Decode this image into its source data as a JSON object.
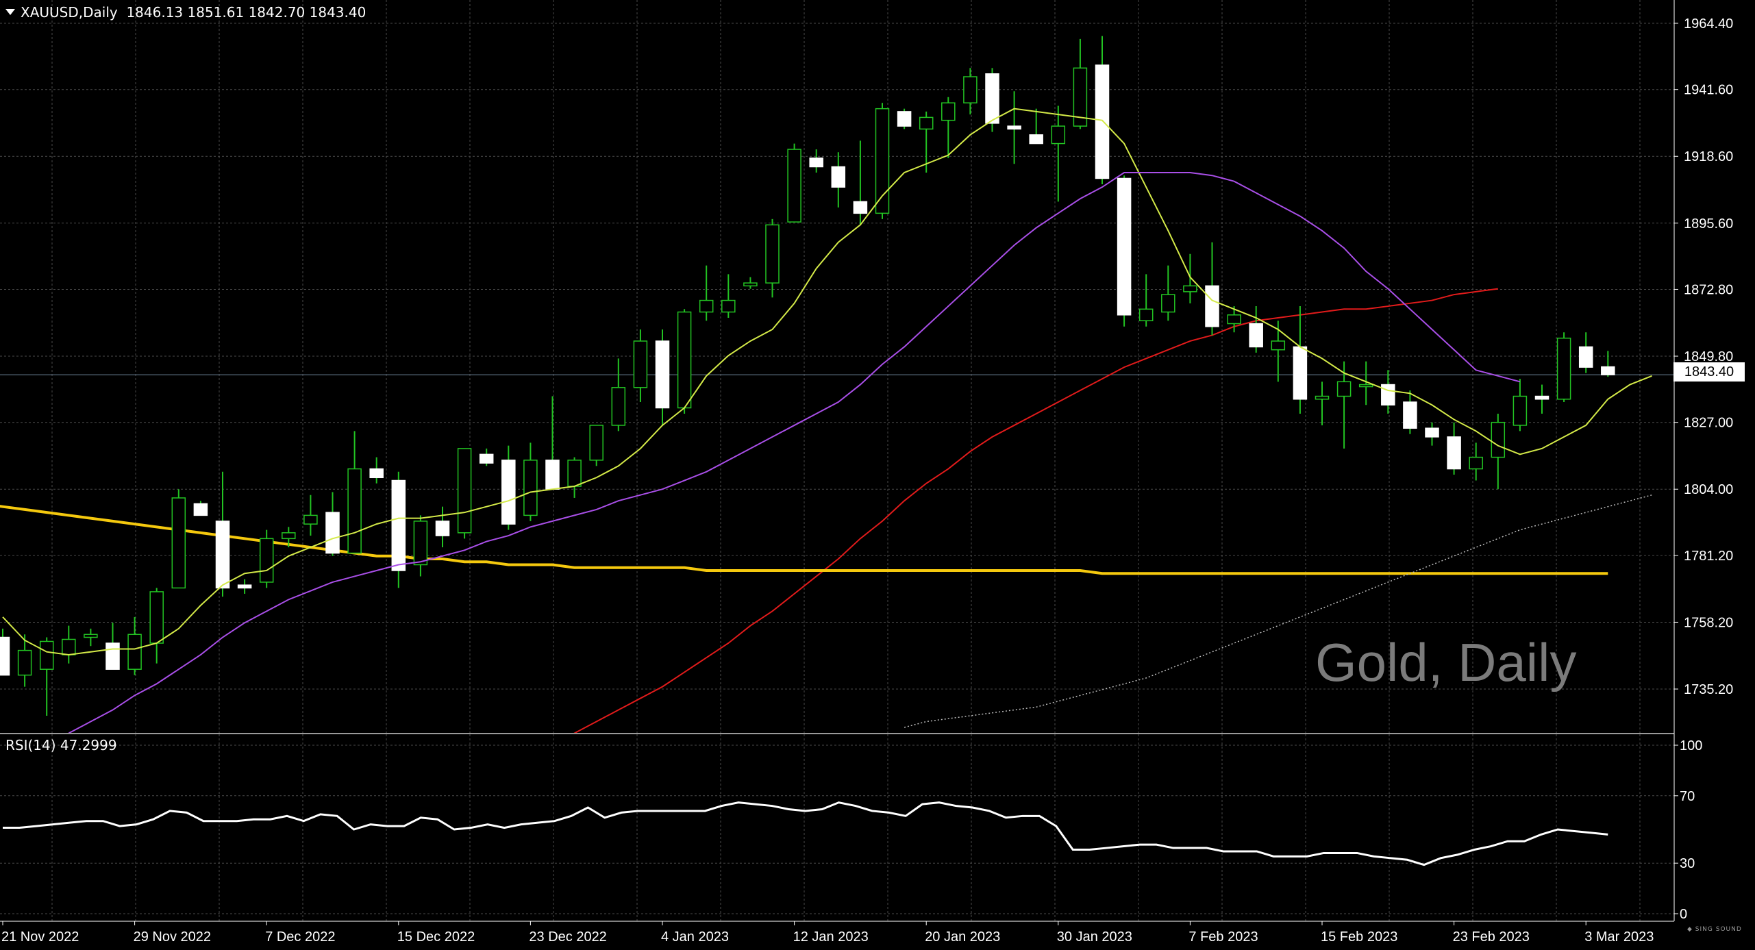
{
  "header": {
    "symbol": "XAUUSD,Daily",
    "ohlc": "1846.13 1851.61 1842.70 1843.40"
  },
  "watermark": "Gold, Daily",
  "current_price_label": "1843.40",
  "rsi_header": "RSI(14) 47.2999",
  "logo_text": "SING SOUND",
  "colors": {
    "background": "#000000",
    "grid": "#4a4a4a",
    "candle_up_body": "#000000",
    "candle_up_border": "#22c322",
    "candle_down_body": "#ffffff",
    "wick": "#22c322",
    "ma_fast": "#d4ea48",
    "ma_medium": "#a94fe8",
    "ma_slow": "#e21b1b",
    "ma_long_yellow": "#f5c90e",
    "ma_long_dotted": "#bbbbbb",
    "rsi_line": "#ffffff"
  },
  "chart_data": [
    {
      "type": "candlestick",
      "title": "XAUUSD,Daily",
      "y_ticks": [
        "1964.40",
        "1941.60",
        "1918.60",
        "1895.60",
        "1872.80",
        "1849.80",
        "1827.00",
        "1804.00",
        "1781.20",
        "1758.20",
        "1735.20"
      ],
      "ylim": [
        1722,
        1972
      ],
      "x_labels": [
        "21 Nov 2022",
        "29 Nov 2022",
        "7 Dec 2022",
        "15 Dec 2022",
        "23 Dec 2022",
        "4 Jan 2023",
        "12 Jan 2023",
        "20 Jan 2023",
        "30 Jan 2023",
        "7 Feb 2023",
        "15 Feb 2023",
        "23 Feb 2023",
        "3 Mar 2023"
      ],
      "x_label_bar_index": [
        0,
        6,
        12,
        18,
        24,
        30,
        36,
        42,
        48,
        54,
        60,
        66,
        72
      ],
      "last_price": 1843.4,
      "candles": [
        {
          "o": 1753.0,
          "h": 1756.0,
          "l": 1740.0,
          "c": 1740.0
        },
        {
          "o": 1740.0,
          "h": 1754.0,
          "l": 1736.0,
          "c": 1748.5
        },
        {
          "o": 1742.0,
          "h": 1753.0,
          "l": 1726.0,
          "c": 1751.6
        },
        {
          "o": 1747.0,
          "h": 1757.0,
          "l": 1744.0,
          "c": 1752.3
        },
        {
          "o": 1753.0,
          "h": 1756.0,
          "l": 1750.0,
          "c": 1754.0
        },
        {
          "o": 1751.0,
          "h": 1758.0,
          "l": 1743.0,
          "c": 1742.0
        },
        {
          "o": 1742.0,
          "h": 1760.0,
          "l": 1740.0,
          "c": 1754.0
        },
        {
          "o": 1751.0,
          "h": 1770.0,
          "l": 1744.0,
          "c": 1768.7
        },
        {
          "o": 1770.0,
          "h": 1804.0,
          "l": 1770.0,
          "c": 1801.0
        },
        {
          "o": 1799.0,
          "h": 1800.0,
          "l": 1795.0,
          "c": 1795.0
        },
        {
          "o": 1793.0,
          "h": 1810.0,
          "l": 1767.0,
          "c": 1770.0
        },
        {
          "o": 1771.0,
          "h": 1773.0,
          "l": 1768.0,
          "c": 1770.0
        },
        {
          "o": 1772.0,
          "h": 1790.0,
          "l": 1770.0,
          "c": 1787.0
        },
        {
          "o": 1787.0,
          "h": 1791.0,
          "l": 1784.0,
          "c": 1789.0
        },
        {
          "o": 1792.0,
          "h": 1802.0,
          "l": 1788.0,
          "c": 1795.0
        },
        {
          "o": 1796.0,
          "h": 1803.0,
          "l": 1781.0,
          "c": 1782.0
        },
        {
          "o": 1782.0,
          "h": 1824.0,
          "l": 1782.0,
          "c": 1811.0
        },
        {
          "o": 1811.0,
          "h": 1815.0,
          "l": 1806.0,
          "c": 1808.0
        },
        {
          "o": 1807.0,
          "h": 1810.0,
          "l": 1770.0,
          "c": 1776.0
        },
        {
          "o": 1778.0,
          "h": 1795.0,
          "l": 1774.0,
          "c": 1793.0
        },
        {
          "o": 1793.0,
          "h": 1798.0,
          "l": 1784.0,
          "c": 1788.0
        },
        {
          "o": 1789.0,
          "h": 1817.0,
          "l": 1787.0,
          "c": 1818.0
        },
        {
          "o": 1816.0,
          "h": 1818.0,
          "l": 1812.0,
          "c": 1813.0
        },
        {
          "o": 1814.0,
          "h": 1819.0,
          "l": 1790.0,
          "c": 1792.0
        },
        {
          "o": 1795.0,
          "h": 1820.0,
          "l": 1793.0,
          "c": 1814.0
        },
        {
          "o": 1814.0,
          "h": 1836.0,
          "l": 1804.0,
          "c": 1804.0
        },
        {
          "o": 1805.0,
          "h": 1815.0,
          "l": 1801.0,
          "c": 1814.0
        },
        {
          "o": 1814.0,
          "h": 1826.0,
          "l": 1812.0,
          "c": 1826.0
        },
        {
          "o": 1826.0,
          "h": 1849.0,
          "l": 1824.0,
          "c": 1839.0
        },
        {
          "o": 1839.0,
          "h": 1859.0,
          "l": 1834.0,
          "c": 1855.0
        },
        {
          "o": 1855.0,
          "h": 1859.0,
          "l": 1826.0,
          "c": 1832.0
        },
        {
          "o": 1832.0,
          "h": 1866.0,
          "l": 1830.0,
          "c": 1865.0
        },
        {
          "o": 1865.0,
          "h": 1881.0,
          "l": 1862.0,
          "c": 1869.0
        },
        {
          "o": 1865.0,
          "h": 1878.0,
          "l": 1863.0,
          "c": 1869.0
        },
        {
          "o": 1874.0,
          "h": 1877.0,
          "l": 1873.0,
          "c": 1875.0
        },
        {
          "o": 1875.0,
          "h": 1897.0,
          "l": 1870.0,
          "c": 1895.0
        },
        {
          "o": 1896.0,
          "h": 1923.0,
          "l": 1896.0,
          "c": 1921.0
        },
        {
          "o": 1918.0,
          "h": 1921.0,
          "l": 1913.0,
          "c": 1915.0
        },
        {
          "o": 1915.0,
          "h": 1920.0,
          "l": 1901.0,
          "c": 1908.0
        },
        {
          "o": 1903.0,
          "h": 1924.0,
          "l": 1895.0,
          "c": 1899.0
        },
        {
          "o": 1899.0,
          "h": 1937.0,
          "l": 1897.0,
          "c": 1935.0
        },
        {
          "o": 1934.0,
          "h": 1935.0,
          "l": 1928.0,
          "c": 1929.0
        },
        {
          "o": 1928.0,
          "h": 1934.0,
          "l": 1913.0,
          "c": 1932.0
        },
        {
          "o": 1931.0,
          "h": 1939.0,
          "l": 1918.0,
          "c": 1937.0
        },
        {
          "o": 1937.0,
          "h": 1949.0,
          "l": 1933.0,
          "c": 1946.0
        },
        {
          "o": 1947.0,
          "h": 1949.0,
          "l": 1927.0,
          "c": 1930.0
        },
        {
          "o": 1929.0,
          "h": 1941.0,
          "l": 1916.0,
          "c": 1928.0
        },
        {
          "o": 1926.0,
          "h": 1935.0,
          "l": 1923.0,
          "c": 1923.0
        },
        {
          "o": 1923.0,
          "h": 1936.0,
          "l": 1903.0,
          "c": 1929.0
        },
        {
          "o": 1929.0,
          "h": 1959.0,
          "l": 1928.0,
          "c": 1949.0
        },
        {
          "o": 1950.0,
          "h": 1960.0,
          "l": 1909.0,
          "c": 1911.0
        },
        {
          "o": 1911.0,
          "h": 1912.0,
          "l": 1860.0,
          "c": 1864.0
        },
        {
          "o": 1862.0,
          "h": 1878.0,
          "l": 1860.0,
          "c": 1866.0
        },
        {
          "o": 1865.0,
          "h": 1881.0,
          "l": 1862.0,
          "c": 1871.0
        },
        {
          "o": 1872.0,
          "h": 1885.0,
          "l": 1868.0,
          "c": 1874.0
        },
        {
          "o": 1874.0,
          "h": 1889.0,
          "l": 1857.0,
          "c": 1860.0
        },
        {
          "o": 1861.0,
          "h": 1867.0,
          "l": 1858.0,
          "c": 1864.0
        },
        {
          "o": 1861.0,
          "h": 1867.0,
          "l": 1851.0,
          "c": 1853.0
        },
        {
          "o": 1852.0,
          "h": 1862.0,
          "l": 1841.0,
          "c": 1855.0
        },
        {
          "o": 1853.0,
          "h": 1867.0,
          "l": 1830.0,
          "c": 1835.0
        },
        {
          "o": 1835.0,
          "h": 1841.0,
          "l": 1826.0,
          "c": 1836.0
        },
        {
          "o": 1836.0,
          "h": 1848.0,
          "l": 1818.0,
          "c": 1841.0
        },
        {
          "o": 1840.0,
          "h": 1848.0,
          "l": 1833.0,
          "c": 1840.0
        },
        {
          "o": 1840.0,
          "h": 1845.0,
          "l": 1830.0,
          "c": 1833.0
        },
        {
          "o": 1834.0,
          "h": 1838.0,
          "l": 1823.0,
          "c": 1825.0
        },
        {
          "o": 1825.0,
          "h": 1827.0,
          "l": 1819.0,
          "c": 1822.0
        },
        {
          "o": 1822.0,
          "h": 1827.0,
          "l": 1809.0,
          "c": 1811.0
        },
        {
          "o": 1811.0,
          "h": 1820.0,
          "l": 1807.0,
          "c": 1815.0
        },
        {
          "o": 1815.0,
          "h": 1830.0,
          "l": 1804.0,
          "c": 1827.0
        },
        {
          "o": 1826.0,
          "h": 1842.0,
          "l": 1824.0,
          "c": 1836.0
        },
        {
          "o": 1836.0,
          "h": 1840.0,
          "l": 1830.0,
          "c": 1835.0
        },
        {
          "o": 1835.0,
          "h": 1858.0,
          "l": 1834.0,
          "c": 1856.0
        },
        {
          "o": 1853.0,
          "h": 1858.0,
          "l": 1844.0,
          "c": 1846.0
        },
        {
          "o": 1846.13,
          "h": 1851.61,
          "l": 1842.7,
          "c": 1843.4
        }
      ],
      "overlays": [
        {
          "name": "ma_fast",
          "color": "#d4ea48",
          "values": [
            1760,
            1752,
            1748,
            1747,
            1748,
            1749,
            1749,
            1751,
            1756,
            1764,
            1771,
            1775,
            1776,
            1781,
            1784,
            1787,
            1789,
            1792,
            1794,
            1794,
            1795,
            1796,
            1798,
            1800,
            1803,
            1804,
            1805,
            1808,
            1812,
            1818,
            1826,
            1832,
            1843,
            1850,
            1855,
            1859,
            1868,
            1880,
            1889,
            1895,
            1905,
            1913,
            1916,
            1919,
            1926,
            1931,
            1935,
            1934,
            1933,
            1932,
            1931,
            1923,
            1908,
            1893,
            1877,
            1869,
            1866,
            1863,
            1859,
            1853,
            1849,
            1844,
            1841,
            1838,
            1837,
            1833,
            1828,
            1824,
            1819,
            1816,
            1818,
            1822,
            1826,
            1835,
            1840,
            1843
          ]
        },
        {
          "name": "ma_medium",
          "color": "#a94fe8",
          "values": [
            1720,
            1724,
            1728,
            1733,
            1737,
            1742,
            1747,
            1753,
            1758,
            1762,
            1766,
            1769,
            1772,
            1774,
            1776,
            1778,
            1779,
            1781,
            1783,
            1786,
            1788,
            1791,
            1793,
            1795,
            1797,
            1800,
            1802,
            1804,
            1807,
            1810,
            1814,
            1818,
            1822,
            1826,
            1830,
            1834,
            1840,
            1847,
            1853,
            1860,
            1867,
            1874,
            1881,
            1888,
            1894,
            1899,
            1904,
            1908,
            1913,
            1913,
            1913,
            1913,
            1912,
            1910,
            1906,
            1902,
            1898,
            1893,
            1887,
            1879,
            1873,
            1866,
            1859,
            1852,
            1845,
            1843,
            1841
          ],
          "start_index": 3
        },
        {
          "name": "ma_slow",
          "color": "#e21b1b",
          "values": [
            1716,
            1720,
            1724,
            1728,
            1732,
            1736,
            1741,
            1746,
            1751,
            1757,
            1762,
            1768,
            1774,
            1780,
            1787,
            1793,
            1800,
            1806,
            1811,
            1817,
            1822,
            1826,
            1830,
            1834,
            1838,
            1842,
            1846,
            1849,
            1852,
            1855,
            1857,
            1860,
            1862,
            1863,
            1864,
            1865,
            1866,
            1866,
            1867,
            1868,
            1869,
            1871,
            1872,
            1873
          ],
          "start_index": 25
        },
        {
          "name": "ma_long_yellow",
          "color": "#f5c90e",
          "values": [
            1800,
            1799,
            1798,
            1797,
            1796,
            1795,
            1794,
            1793,
            1792,
            1791,
            1790,
            1789,
            1788,
            1787,
            1786,
            1785,
            1784,
            1783,
            1782,
            1781,
            1781,
            1780,
            1780,
            1779,
            1779,
            1778,
            1778,
            1778,
            1777,
            1777,
            1777,
            1777,
            1777,
            1777,
            1776,
            1776,
            1776,
            1776,
            1776,
            1776,
            1776,
            1776,
            1776,
            1776,
            1776,
            1776,
            1776,
            1776,
            1776,
            1776,
            1776,
            1776,
            1775,
            1775,
            1775,
            1775,
            1775,
            1775,
            1775,
            1775,
            1775,
            1775,
            1775,
            1775,
            1775,
            1775,
            1775,
            1775,
            1775,
            1775,
            1775,
            1775,
            1775,
            1775,
            1775,
            1775
          ],
          "start_index": -2
        },
        {
          "name": "ma_long_dotted",
          "color": "#bbbbbb",
          "values": [
            1722,
            1724,
            1725,
            1726,
            1727,
            1728,
            1729,
            1731,
            1733,
            1735,
            1737,
            1739,
            1742,
            1745,
            1748,
            1751,
            1754,
            1757,
            1760,
            1763,
            1766,
            1769,
            1772,
            1775,
            1778,
            1781,
            1784,
            1787,
            1790,
            1792,
            1794,
            1796,
            1798,
            1800,
            1802
          ],
          "start_index": 41
        }
      ]
    },
    {
      "type": "line",
      "title": "RSI(14) 47.2999",
      "y_ticks": [
        "100",
        "70",
        "30",
        "0"
      ],
      "ylim": [
        0,
        100
      ],
      "series": [
        {
          "color": "#ffffff",
          "values": [
            51,
            51,
            52,
            53,
            54,
            55,
            55,
            52,
            53,
            56,
            61,
            60,
            55,
            55,
            55,
            56,
            56,
            58,
            55,
            59,
            58,
            50,
            53,
            52,
            52,
            57,
            56,
            50,
            51,
            53,
            51,
            53,
            54,
            55,
            58,
            63,
            57,
            60,
            61,
            61,
            61,
            61,
            61,
            64,
            66,
            65,
            64,
            62,
            61,
            62,
            66,
            64,
            61,
            60,
            58,
            65,
            66,
            64,
            63,
            61,
            57,
            58,
            58,
            52,
            38,
            38,
            39,
            40,
            41,
            41,
            39,
            39,
            39,
            37,
            37,
            37,
            34,
            34,
            34,
            36,
            36,
            36,
            34,
            33,
            32,
            29,
            33,
            35,
            38,
            40,
            43,
            43,
            47,
            50,
            49,
            48,
            47
          ]
        }
      ],
      "note_values_reindexed_to_candles": true
    }
  ]
}
